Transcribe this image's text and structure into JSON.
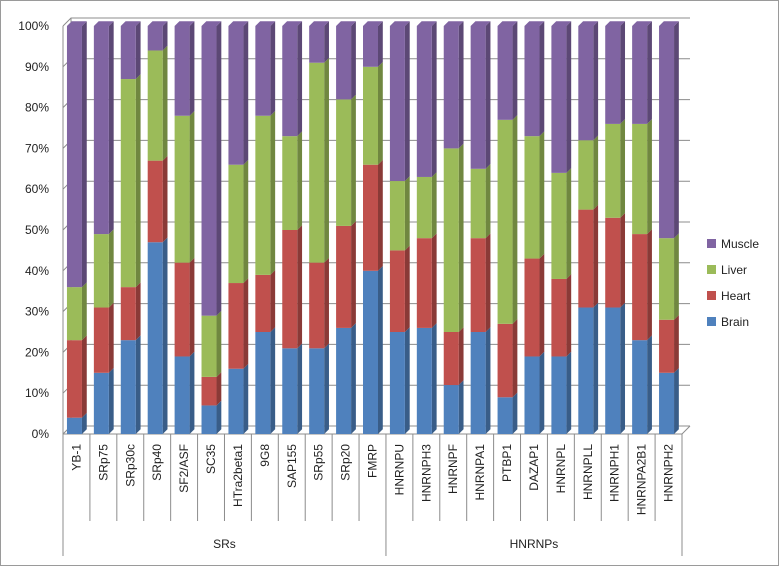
{
  "chart_data": {
    "type": "bar",
    "stacked": true,
    "percent": true,
    "title": "",
    "xlabel": "",
    "ylabel": "",
    "ylim": [
      0,
      100
    ],
    "y_ticks": [
      "0%",
      "10%",
      "20%",
      "30%",
      "40%",
      "50%",
      "60%",
      "70%",
      "80%",
      "90%",
      "100%"
    ],
    "categories": [
      "YB-1",
      "SRp75",
      "SRp30c",
      "SRp40",
      "SF2/ASF",
      "SC35",
      "HTra2beta1",
      "9G8",
      "SAP155",
      "SRp55",
      "SRp20",
      "FMRP",
      "HNRNPU",
      "HNRNPH3",
      "HNRNPF",
      "HNRNPA1",
      "PTBP1",
      "DAZAP1",
      "HNRNPL",
      "HNRNPLL",
      "HNRNPH1",
      "HNRNPA2B1",
      "HNRNPH2"
    ],
    "groups": [
      {
        "name": "SRs",
        "start": 0,
        "end": 11
      },
      {
        "name": "HNRNPs",
        "start": 12,
        "end": 22
      }
    ],
    "series": [
      {
        "name": "Brain",
        "color": "#4f81bd",
        "values": [
          4,
          15,
          23,
          47,
          19,
          7,
          16,
          25,
          21,
          21,
          26,
          40,
          25,
          26,
          12,
          25,
          9,
          19,
          19,
          31,
          31,
          23,
          15
        ]
      },
      {
        "name": "Heart",
        "color": "#c0504d",
        "values": [
          19,
          16,
          13,
          20,
          23,
          7,
          21,
          14,
          29,
          21,
          25,
          26,
          20,
          22,
          13,
          23,
          18,
          24,
          19,
          24,
          22,
          26,
          13
        ]
      },
      {
        "name": "Liver",
        "color": "#9bbb59",
        "values": [
          13,
          18,
          51,
          27,
          36,
          15,
          29,
          39,
          23,
          49,
          31,
          24,
          17,
          15,
          45,
          17,
          50,
          30,
          26,
          17,
          23,
          27,
          20
        ]
      },
      {
        "name": "Muscle",
        "color": "#8064a2",
        "values": [
          64,
          51,
          13,
          6,
          22,
          71,
          34,
          22,
          27,
          9,
          18,
          10,
          38,
          37,
          30,
          35,
          23,
          27,
          36,
          28,
          24,
          24,
          52
        ]
      }
    ],
    "legend": {
      "position": "right",
      "order": [
        "Muscle",
        "Liver",
        "Heart",
        "Brain"
      ]
    },
    "grid": true
  }
}
